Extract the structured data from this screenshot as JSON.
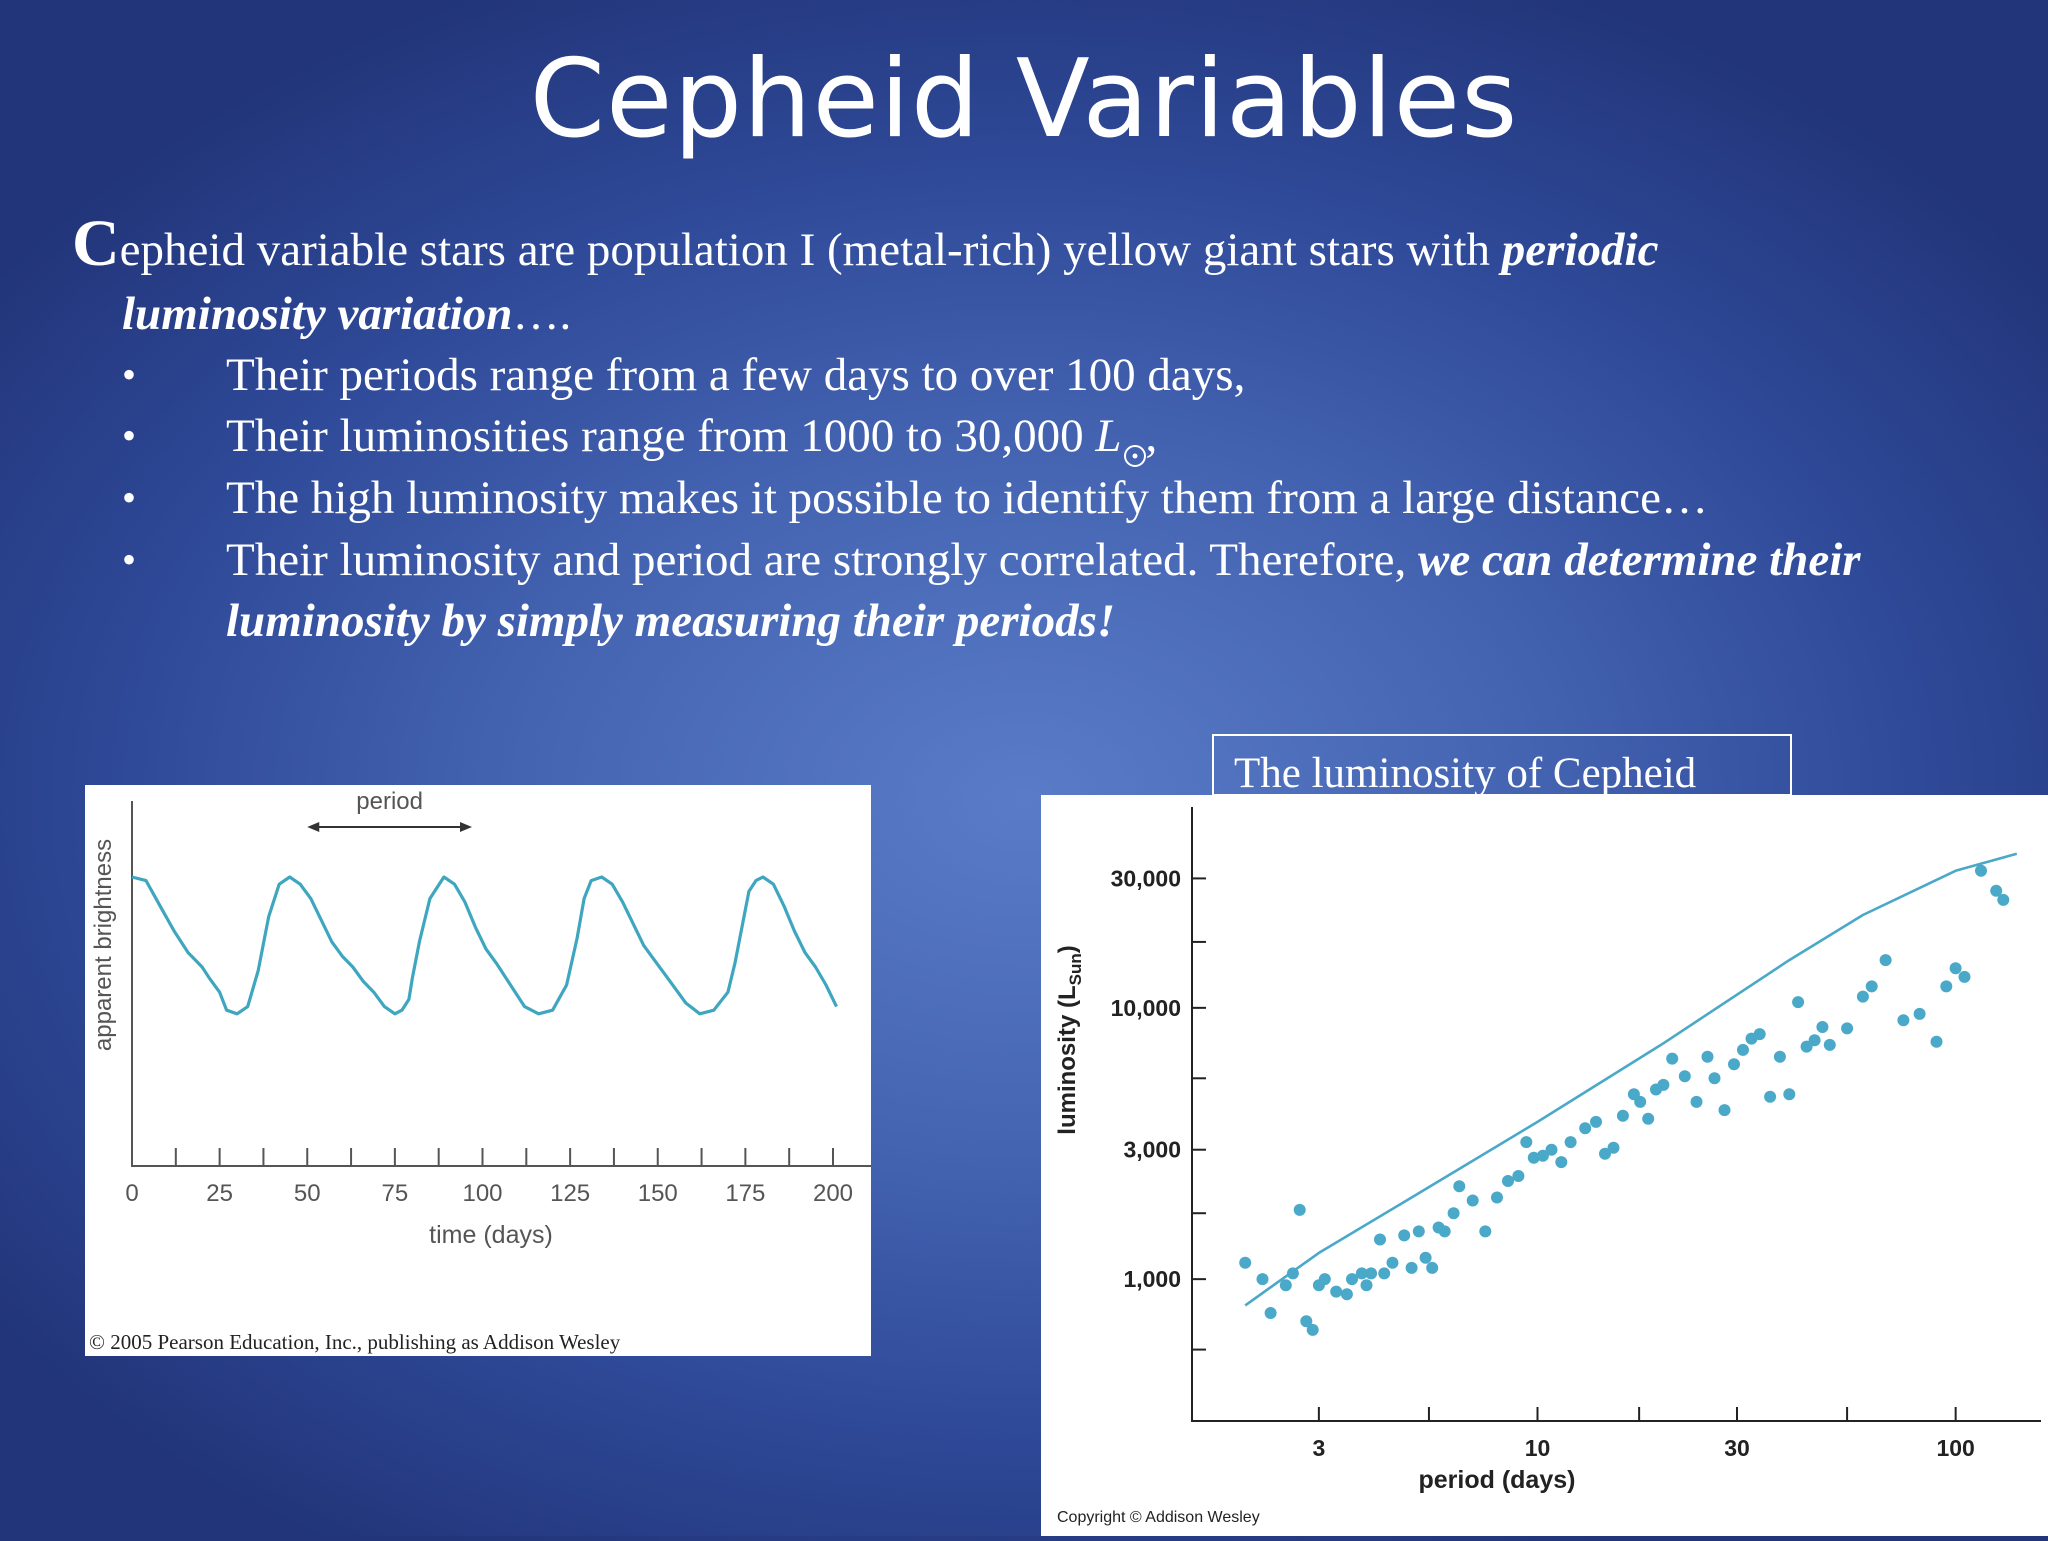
{
  "slide": {
    "title": "Cepheid Variables",
    "intro": {
      "dropcap": "C",
      "text_a": "epheid variable stars are population I (metal-rich) yellow giant stars with ",
      "emph_a": "periodic",
      "emph_b": "luminosity variation",
      "ellipsis": "…."
    },
    "bullet_char": "•",
    "bullets": [
      "Their periods range from a few days to over 100 days,",
      "Their luminosities range from 1000 to 30,000 ",
      "The high luminosity makes it possible to identify them from a large distance…",
      "Their luminosity and period are strongly correlated. Therefore, "
    ],
    "sun_symbol_letter": "L",
    "bullet2_tail": ",",
    "bullet4_emph_a": "we can determine their",
    "bullet4_emph_b": "luminosity by simply measuring their periods!",
    "caption": "The luminosity of Cepheid"
  },
  "chart_data": [
    {
      "type": "line",
      "xlabel": "time (days)",
      "ylabel": "apparent brightness",
      "x_ticks": [
        "0",
        "25",
        "50",
        "75",
        "100",
        "125",
        "150",
        "175",
        "200"
      ],
      "xlim": [
        0,
        205
      ],
      "ylim": [
        0,
        1
      ],
      "annotation": "period",
      "annotation_range": [
        50,
        97
      ],
      "series": [
        {
          "color": "#3ea6bf",
          "x": [
            0,
            4,
            8,
            12,
            16,
            20,
            22,
            25,
            27,
            30,
            33,
            36,
            39,
            42,
            45,
            48,
            51,
            54,
            57,
            60,
            63,
            66,
            69,
            72,
            75,
            77,
            79,
            80,
            82,
            85,
            89,
            92,
            95,
            98,
            101,
            104,
            108,
            112,
            116,
            120,
            124,
            127,
            129,
            131,
            134,
            137,
            140,
            143,
            146,
            149,
            152,
            155,
            158,
            162,
            166,
            170,
            172,
            174,
            176,
            178,
            180,
            183,
            186,
            189,
            192,
            195,
            198,
            201
          ],
          "y": [
            0.8,
            0.79,
            0.72,
            0.65,
            0.59,
            0.55,
            0.52,
            0.48,
            0.43,
            0.42,
            0.44,
            0.54,
            0.69,
            0.78,
            0.8,
            0.78,
            0.74,
            0.68,
            0.62,
            0.58,
            0.55,
            0.51,
            0.48,
            0.44,
            0.42,
            0.43,
            0.46,
            0.52,
            0.62,
            0.74,
            0.8,
            0.78,
            0.73,
            0.66,
            0.6,
            0.56,
            0.5,
            0.44,
            0.42,
            0.43,
            0.5,
            0.63,
            0.74,
            0.79,
            0.8,
            0.78,
            0.73,
            0.67,
            0.61,
            0.57,
            0.53,
            0.49,
            0.45,
            0.42,
            0.43,
            0.48,
            0.56,
            0.66,
            0.76,
            0.79,
            0.8,
            0.78,
            0.72,
            0.65,
            0.59,
            0.55,
            0.5,
            0.44
          ]
        }
      ]
    },
    {
      "type": "scatter",
      "xlabel": "period (days)",
      "ylabel": "luminosity (L",
      "ylabel_sub": "Sun",
      "ylabel_end": ")",
      "x_scale": "log",
      "y_scale": "log",
      "x_ticks": [
        "3",
        "10",
        "30",
        "100"
      ],
      "y_ticks": [
        "1,000",
        "3,000",
        "10,000",
        "30,000"
      ],
      "xlim": [
        1.5,
        160
      ],
      "ylim": [
        300,
        55000
      ],
      "trend_line": {
        "x": [
          2,
          3,
          5,
          10,
          20,
          40,
          60,
          100,
          140
        ],
        "y": [
          800,
          1250,
          2000,
          3800,
          7400,
          15000,
          22000,
          32000,
          37000
        ]
      },
      "series": [
        {
          "color": "#4aa8c8",
          "x": [
            2.0,
            2.2,
            2.3,
            2.5,
            2.6,
            2.7,
            2.8,
            2.9,
            3.0,
            3.1,
            3.3,
            3.5,
            3.6,
            3.8,
            3.9,
            4.0,
            4.2,
            4.3,
            4.5,
            4.8,
            5.0,
            5.2,
            5.4,
            5.6,
            5.8,
            6.0,
            6.3,
            6.5,
            7.0,
            7.5,
            8.0,
            8.5,
            9.0,
            9.4,
            9.8,
            10.3,
            10.8,
            11.4,
            12.0,
            13.0,
            13.8,
            14.5,
            15.2,
            16.0,
            17.0,
            17.6,
            18.4,
            19.2,
            20.0,
            21.0,
            22.5,
            24.0,
            25.5,
            26.5,
            28.0,
            29.5,
            31.0,
            32.5,
            34.0,
            36.0,
            38.0,
            40.0,
            42.0,
            44.0,
            46.0,
            48.0,
            50.0,
            55.0,
            60.0,
            63.0,
            68.0,
            75.0,
            82.0,
            90.0,
            95.0,
            100.0,
            105.0,
            115.0,
            125.0,
            130.0
          ],
          "y": [
            1150,
            1000,
            750,
            950,
            1050,
            1800,
            700,
            650,
            950,
            1000,
            900,
            880,
            1000,
            1050,
            950,
            1050,
            1400,
            1050,
            1150,
            1450,
            1100,
            1500,
            1200,
            1100,
            1550,
            1500,
            1750,
            2200,
            1950,
            1500,
            2000,
            2300,
            2400,
            3200,
            2800,
            2850,
            3000,
            2700,
            3200,
            3600,
            3800,
            2900,
            3050,
            4000,
            4800,
            4500,
            3900,
            5000,
            5200,
            6500,
            5600,
            4500,
            6600,
            5500,
            4200,
            6200,
            7000,
            7700,
            8000,
            4700,
            6600,
            4800,
            10500,
            7200,
            7600,
            8500,
            7300,
            8400,
            11000,
            12000,
            15000,
            9000,
            9500,
            7500,
            12000,
            14000,
            13000,
            32000,
            27000,
            25000
          ]
        }
      ]
    }
  ],
  "credits": {
    "left": "© 2005 Pearson Education, Inc., publishing as Addison Wesley",
    "right": "Copyright © Addison Wesley"
  }
}
